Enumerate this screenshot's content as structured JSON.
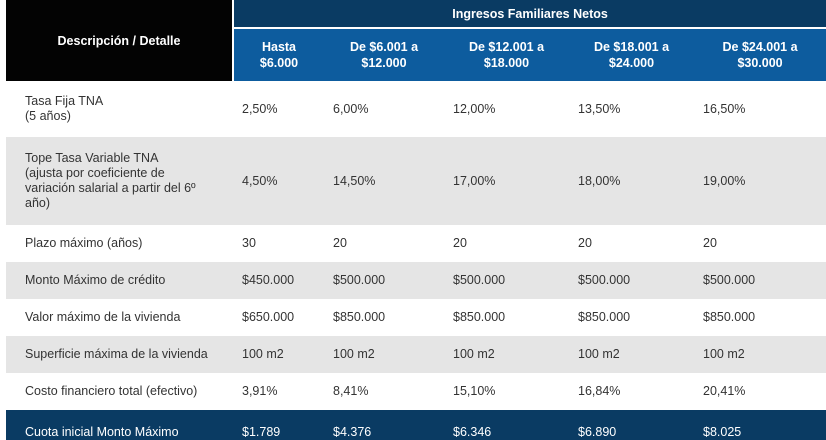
{
  "header": {
    "description_label": "Descripción / Detalle",
    "group_label": "Ingresos Familiares Netos",
    "ranges": [
      "Hasta\n$6.000",
      "De $6.001 a\n$12.000",
      "De $12.001 a\n$18.000",
      "De $18.001 a\n$24.000",
      "De $24.001 a\n$30.000"
    ]
  },
  "rows": [
    {
      "label": "Tasa Fija TNA\n(5 años)",
      "values": [
        "2,50%",
        "6,00%",
        "12,00%",
        "13,50%",
        "16,50%"
      ]
    },
    {
      "label": "Tope Tasa Variable TNA\n(ajusta por coeficiente de\nvariación salarial a partir del 6º\naño)",
      "values": [
        "4,50%",
        "14,50%",
        "17,00%",
        "18,00%",
        "19,00%"
      ]
    },
    {
      "label": "Plazo máximo (años)",
      "values": [
        "30",
        "20",
        "20",
        "20",
        "20"
      ]
    },
    {
      "label": "Monto Máximo de crédito",
      "values": [
        "$450.000",
        "$500.000",
        "$500.000",
        "$500.000",
        "$500.000"
      ]
    },
    {
      "label": "Valor máximo de la vivienda",
      "values": [
        "$650.000",
        "$850.000",
        "$850.000",
        "$850.000",
        "$850.000"
      ]
    },
    {
      "label": "Superficie máxima de la vivienda",
      "values": [
        "100 m2",
        "100 m2",
        "100 m2",
        "100 m2",
        "100 m2"
      ]
    },
    {
      "label": "Costo financiero total (efectivo)",
      "values": [
        "3,91%",
        "8,41%",
        "15,10%",
        "16,84%",
        "20,41%"
      ]
    }
  ],
  "footer": {
    "label": "Cuota inicial Monto Máximo",
    "values": [
      "$1.789",
      "$4.376",
      "$6.346",
      "$6.890",
      "$8.025"
    ]
  }
}
